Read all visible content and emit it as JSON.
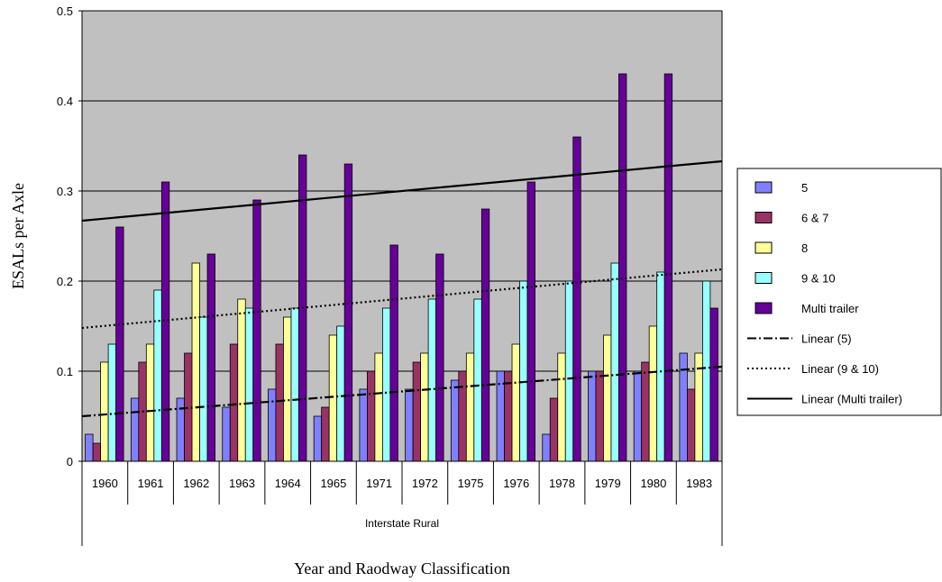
{
  "chart_data": {
    "type": "bar",
    "xlabel": "Year and Raodway Classification",
    "ylabel": "ESALs per Axle",
    "group_label": "Interstate Rural",
    "ylim": [
      0,
      0.5
    ],
    "yticks": [
      "0",
      "0.1",
      "0.2",
      "0.3",
      "0.4",
      "0.5"
    ],
    "grid": true,
    "legend_position": "right",
    "categories": [
      "1960",
      "1961",
      "1962",
      "1963",
      "1964",
      "1965",
      "1971",
      "1972",
      "1975",
      "1976",
      "1978",
      "1979",
      "1980",
      "1983"
    ],
    "series": [
      {
        "name": "5",
        "color": "#8080ff",
        "values": [
          0.03,
          0.07,
          0.07,
          0.06,
          0.08,
          0.05,
          0.08,
          0.08,
          0.09,
          0.1,
          0.03,
          0.1,
          0.1,
          0.12
        ]
      },
      {
        "name": "6 & 7",
        "color": "#993366",
        "values": [
          0.02,
          0.11,
          0.12,
          0.13,
          0.13,
          0.06,
          0.1,
          0.11,
          0.1,
          0.1,
          0.07,
          0.1,
          0.11,
          0.08
        ]
      },
      {
        "name": "8",
        "color": "#ffff99",
        "values": [
          0.11,
          0.13,
          0.22,
          0.18,
          0.16,
          0.14,
          0.12,
          0.12,
          0.12,
          0.13,
          0.12,
          0.14,
          0.15,
          0.12
        ]
      },
      {
        "name": "9 & 10",
        "color": "#99ffff",
        "values": [
          0.13,
          0.19,
          0.16,
          0.17,
          0.17,
          0.15,
          0.17,
          0.18,
          0.18,
          0.2,
          0.2,
          0.22,
          0.21,
          0.2
        ]
      },
      {
        "name": "Multi trailer",
        "color": "#660099",
        "values": [
          0.26,
          0.31,
          0.23,
          0.29,
          0.34,
          0.33,
          0.24,
          0.23,
          0.28,
          0.31,
          0.36,
          0.43,
          0.43,
          0.17
        ]
      }
    ],
    "trendlines": [
      {
        "name": "Linear (5)",
        "style": "dashdot",
        "start": 0.05,
        "end": 0.105
      },
      {
        "name": "Linear (9 & 10)",
        "style": "dotted",
        "start": 0.148,
        "end": 0.213
      },
      {
        "name": "Linear (Multi trailer)",
        "style": "solid",
        "start": 0.267,
        "end": 0.333
      }
    ],
    "colors": {
      "plot_background": "#c0c0c0",
      "gridline": "#000000"
    }
  }
}
